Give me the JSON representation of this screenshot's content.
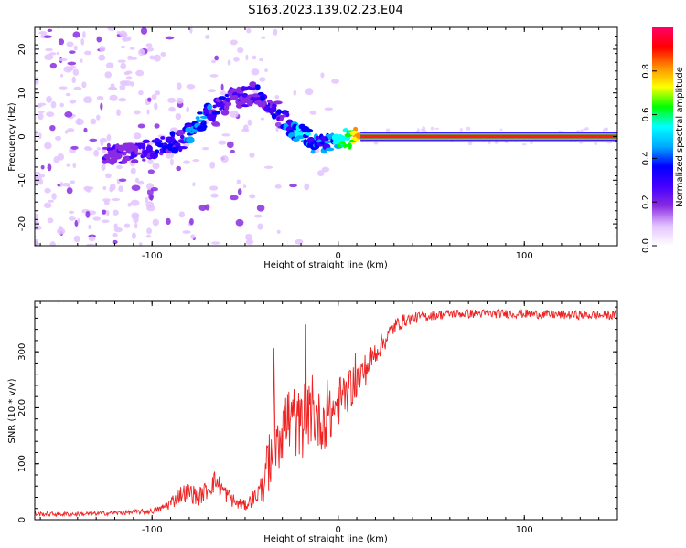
{
  "figure": {
    "title": "S163.2023.139.02.23.E04"
  },
  "chart_data": [
    {
      "type": "heatmap",
      "title": "S163.2023.139.02.23.E04",
      "xlabel": "Height of straight line (km)",
      "ylabel": "Frequency (Hz)",
      "xlim": [
        -163,
        150
      ],
      "ylim": [
        -25,
        25
      ],
      "x_ticks": [
        -100,
        0,
        100
      ],
      "y_ticks": [
        -20,
        -10,
        0,
        10,
        20
      ],
      "x_tick_labels": [
        "-100",
        "0",
        "100"
      ],
      "y_tick_labels": [
        "-20",
        "-10",
        "0",
        "10",
        "20"
      ],
      "colorbar": {
        "label": "Normalized spectral amplitude",
        "range": [
          0.0,
          1.0
        ],
        "ticks": [
          0.0,
          0.2,
          0.4,
          0.6,
          0.8
        ],
        "tick_labels": [
          "0.0",
          "0.2",
          "0.4",
          "0.6",
          "0.8"
        ],
        "colormap": [
          "#ffffff",
          "#e3c4ff",
          "#8a2be2",
          "#4400ff",
          "#0000ff",
          "#00aaff",
          "#00ffff",
          "#00ff00",
          "#ffff00",
          "#ff8c00",
          "#ff0000",
          "#ff0066"
        ]
      },
      "ridge": {
        "x": [
          -120,
          -110,
          -100,
          -92,
          -85,
          -80,
          -75,
          -70,
          -66,
          -60,
          -55,
          -50,
          -45,
          -40,
          -35,
          -30,
          -25,
          -20,
          -15,
          -12,
          -8,
          -4,
          0,
          5,
          10,
          12,
          20,
          40,
          60,
          80,
          100,
          120,
          150
        ],
        "y": [
          -4,
          -4,
          -3,
          -2,
          -1,
          1,
          3,
          5,
          6,
          8,
          9,
          9,
          10,
          9,
          7,
          4,
          2,
          1,
          -1,
          -2,
          -2,
          -1,
          0,
          0,
          0,
          0,
          0,
          0,
          0,
          0,
          0,
          0,
          0
        ],
        "amplitude": [
          0.25,
          0.3,
          0.35,
          0.4,
          0.4,
          0.45,
          0.5,
          0.45,
          0.4,
          0.35,
          0.3,
          0.3,
          0.35,
          0.35,
          0.35,
          0.4,
          0.5,
          0.55,
          0.5,
          0.45,
          0.45,
          0.5,
          0.6,
          0.7,
          0.85,
          0.9,
          0.9,
          0.9,
          0.9,
          0.9,
          0.9,
          0.9,
          0.9
        ]
      }
    },
    {
      "type": "line",
      "xlabel": "Height of straight line (km)",
      "ylabel": "SNR (10 * v/v)",
      "xlim": [
        -163,
        150
      ],
      "ylim": [
        0,
        390
      ],
      "x_ticks": [
        -100,
        0,
        100
      ],
      "y_ticks": [
        0,
        100,
        200,
        300
      ],
      "x_tick_labels": [
        "-100",
        "0",
        "100"
      ],
      "y_tick_labels": [
        "0",
        "100",
        "200",
        "300"
      ],
      "series": [
        {
          "color": "#ee2222",
          "x": [
            -163,
            -140,
            -120,
            -100,
            -95,
            -90,
            -85,
            -80,
            -75,
            -70,
            -66,
            -60,
            -55,
            -50,
            -45,
            -40,
            -37,
            -35,
            -30,
            -25,
            -20,
            -15,
            -10,
            -5,
            0,
            5,
            10,
            15,
            20,
            25,
            30,
            35,
            40,
            50,
            60,
            80,
            100,
            120,
            150
          ],
          "y": [
            10,
            10,
            12,
            15,
            20,
            30,
            45,
            50,
            40,
            55,
            70,
            45,
            30,
            25,
            40,
            60,
            110,
            150,
            170,
            180,
            165,
            190,
            175,
            180,
            210,
            230,
            250,
            270,
            300,
            320,
            345,
            355,
            360,
            365,
            368,
            368,
            368,
            366,
            365
          ],
          "noise": [
            4,
            4,
            4,
            5,
            6,
            12,
            16,
            18,
            16,
            18,
            20,
            16,
            12,
            10,
            15,
            30,
            60,
            80,
            75,
            70,
            60,
            55,
            55,
            50,
            45,
            40,
            35,
            30,
            22,
            18,
            15,
            12,
            10,
            9,
            8,
            8,
            8,
            8,
            8
          ]
        }
      ]
    }
  ]
}
